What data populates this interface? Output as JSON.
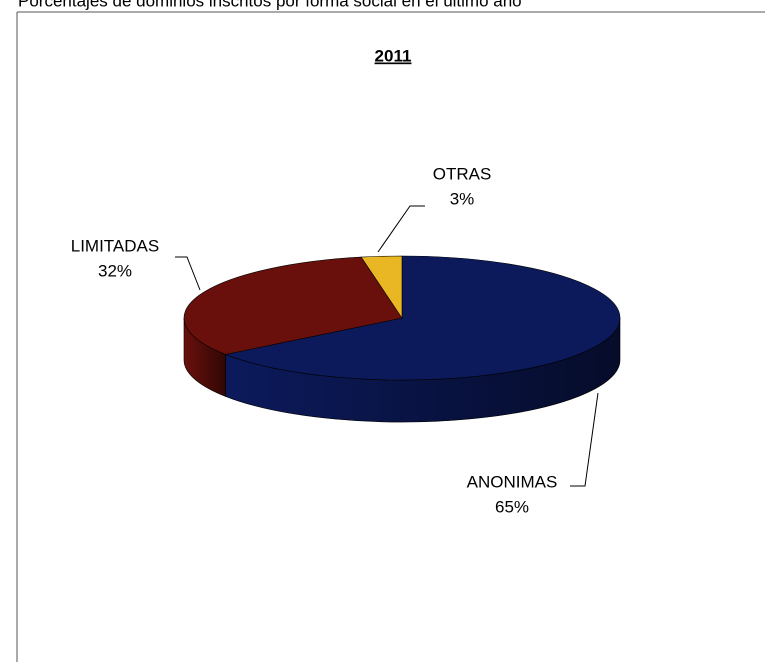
{
  "chart_data": {
    "type": "pie",
    "caption": "Porcentajes de dominios inscritos por forma social en el último año",
    "title": "2011",
    "categories": [
      "ANONIMAS",
      "LIMITADAS",
      "OTRAS"
    ],
    "values": [
      65,
      32,
      3
    ],
    "value_labels": [
      "65%",
      "32%",
      "3%"
    ],
    "colors": [
      "#0c1a5c",
      "#6a100c",
      "#e9b723"
    ]
  }
}
